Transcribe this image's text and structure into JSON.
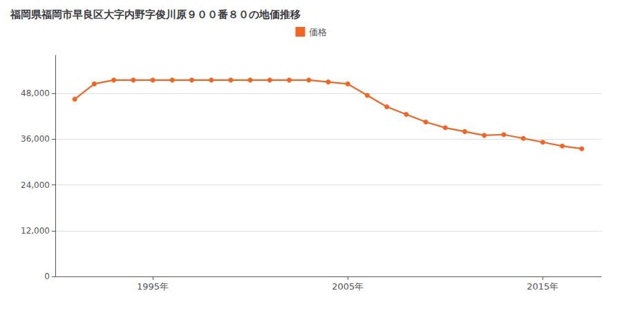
{
  "chart_data": {
    "type": "line",
    "title": "福岡県福岡市早良区大字内野字俊川原９００番８０の地価推移",
    "x": [
      1991,
      1992,
      1993,
      1994,
      1995,
      1996,
      1997,
      1998,
      1999,
      2000,
      2001,
      2002,
      2003,
      2004,
      2005,
      2006,
      2007,
      2008,
      2009,
      2010,
      2011,
      2012,
      2013,
      2014,
      2015,
      2016,
      2017
    ],
    "series": [
      {
        "name": "価格",
        "color": "#f26522",
        "marker": "circle",
        "values": [
          46500,
          50500,
          51500,
          51500,
          51500,
          51500,
          51500,
          51500,
          51500,
          51500,
          51500,
          51500,
          51500,
          51000,
          50500,
          47500,
          44500,
          42500,
          40500,
          39000,
          38000,
          37000,
          37200,
          36200,
          35200,
          34200,
          33500
        ]
      }
    ],
    "xlim": [
      1990,
      2018
    ],
    "xticks": [
      {
        "value": 1995,
        "label": "1995年"
      },
      {
        "value": 2005,
        "label": "2005年"
      },
      {
        "value": 2015,
        "label": "2015年"
      }
    ],
    "ylim": [
      0,
      58000
    ],
    "yticks": [
      0,
      {
        "value": 12000,
        "label": "12,000"
      },
      {
        "value": 24000,
        "label": "24,000"
      },
      {
        "value": 36000,
        "label": "36,000"
      },
      {
        "value": 48000,
        "label": "48,000"
      }
    ],
    "grid": true,
    "legend": "top"
  }
}
